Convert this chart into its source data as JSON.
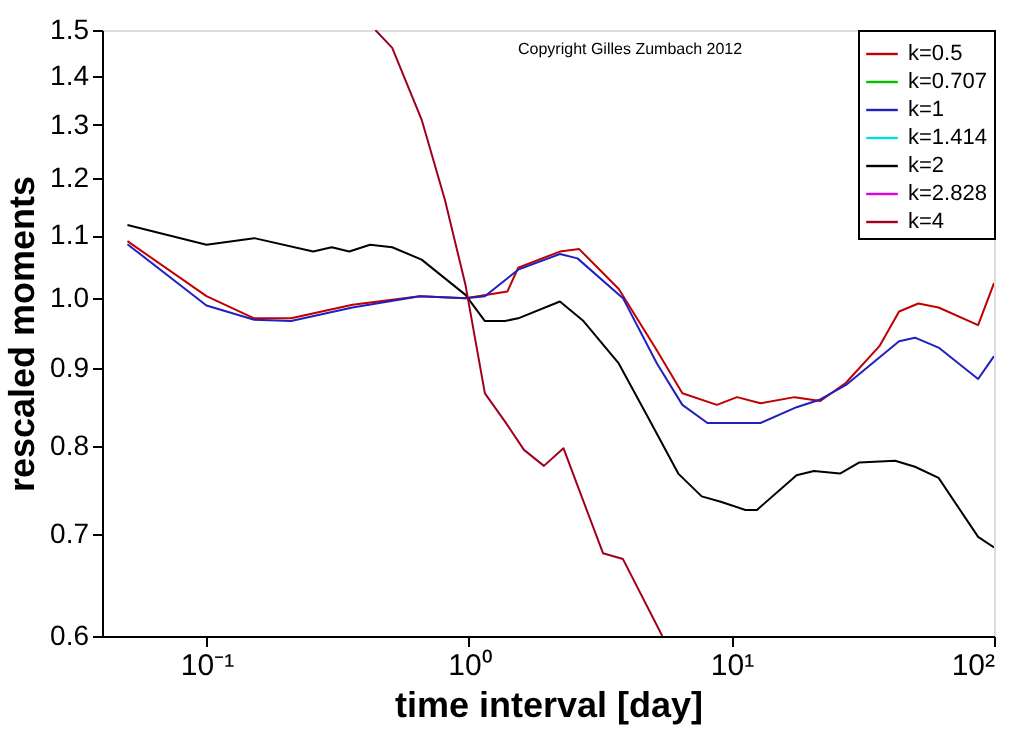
{
  "chart_data": {
    "type": "line",
    "xlabel": "time interval [day]",
    "ylabel": "rescaled moments",
    "log": "xy",
    "grid": false,
    "legend": "top right",
    "marker": "none",
    "line_style": "solid",
    "xlim": [
      0.04,
      100
    ],
    "xticks": [
      {
        "value": 0.1,
        "label": "10⁻¹"
      },
      {
        "value": 1,
        "label": "10⁰"
      },
      {
        "value": 10,
        "label": "10¹"
      },
      {
        "value": 100,
        "label": "10²"
      }
    ],
    "ylim": [
      0.6,
      1.5
    ],
    "yticks": [
      0.6,
      0.7,
      0.8,
      0.9,
      {
        "value": 1,
        "label": "1.0"
      },
      1.1,
      1.2,
      1.3,
      1.4,
      1.5
    ],
    "annotations": [
      "Copyright Gilles Zumbach 2012"
    ],
    "series": [
      {
        "name": "k=0.5",
        "color": "#c00000",
        "x": [
          0.05,
          0.1,
          0.152,
          0.21,
          0.36,
          0.65,
          0.97,
          1.4,
          1.54,
          2.22,
          2.63,
          3.72,
          5.2,
          6.5,
          8.8,
          10.5,
          12.9,
          17.4,
          21.8,
          27.3,
          36.6,
          43.5,
          51.5,
          61.5,
          87,
          100
        ],
        "values": [
          1.09,
          1.003,
          0.97,
          0.97,
          0.99,
          1.003,
          1.0,
          1.01,
          1.047,
          1.073,
          1.077,
          1.014,
          0.924,
          0.866,
          0.851,
          0.861,
          0.853,
          0.861,
          0.856,
          0.88,
          0.93,
          0.98,
          0.992,
          0.986,
          0.96,
          1.023
        ]
      },
      {
        "name": "k=0.707",
        "color": "#00c000"
      },
      {
        "name": "k=1",
        "color": "#2020c0",
        "x": [
          0.05,
          0.1,
          0.152,
          0.21,
          0.36,
          0.65,
          0.97,
          1.15,
          1.54,
          2.22,
          2.59,
          3.86,
          5.2,
          6.5,
          8.1,
          10,
          12.9,
          17.7,
          21.8,
          27.3,
          43.5,
          50,
          61.5,
          87,
          100
        ],
        "values": [
          1.085,
          0.989,
          0.968,
          0.966,
          0.986,
          1.003,
          1.0,
          1.003,
          1.044,
          1.069,
          1.062,
          1.0,
          0.906,
          0.851,
          0.828,
          0.828,
          0.828,
          0.848,
          0.858,
          0.877,
          0.937,
          0.942,
          0.928,
          0.885,
          0.916
        ]
      },
      {
        "name": "k=1.414",
        "color": "#00e0e0"
      },
      {
        "name": "k=2",
        "color": "#000000",
        "x": [
          0.05,
          0.1,
          0.152,
          0.255,
          0.3,
          0.35,
          0.42,
          0.51,
          0.66,
          0.97,
          1.15,
          1.37,
          1.54,
          2.22,
          2.73,
          3.72,
          4.83,
          6.27,
          7.7,
          9.1,
          11.3,
          12.5,
          17.7,
          20.6,
          25.9,
          30.7,
          42,
          50,
          61.5,
          87,
          100
        ],
        "values": [
          1.117,
          1.084,
          1.095,
          1.073,
          1.08,
          1.073,
          1.084,
          1.08,
          1.06,
          1.005,
          0.966,
          0.966,
          0.97,
          0.995,
          0.966,
          0.906,
          0.834,
          0.767,
          0.741,
          0.735,
          0.726,
          0.726,
          0.765,
          0.77,
          0.767,
          0.78,
          0.782,
          0.775,
          0.762,
          0.697,
          0.686
        ]
      },
      {
        "name": "k=2.828",
        "color": "#e000e0"
      },
      {
        "name": "k=4",
        "color": "#a00020",
        "x": [
          0.44,
          0.51,
          0.66,
          0.81,
          0.97,
          1.15,
          1.37,
          1.62,
          1.93,
          2.29,
          3.24,
          3.86,
          5.45
        ],
        "values": [
          1.5,
          1.46,
          1.31,
          1.16,
          1.02,
          0.866,
          0.83,
          0.795,
          0.776,
          0.797,
          0.68,
          0.674,
          0.6
        ]
      }
    ]
  }
}
